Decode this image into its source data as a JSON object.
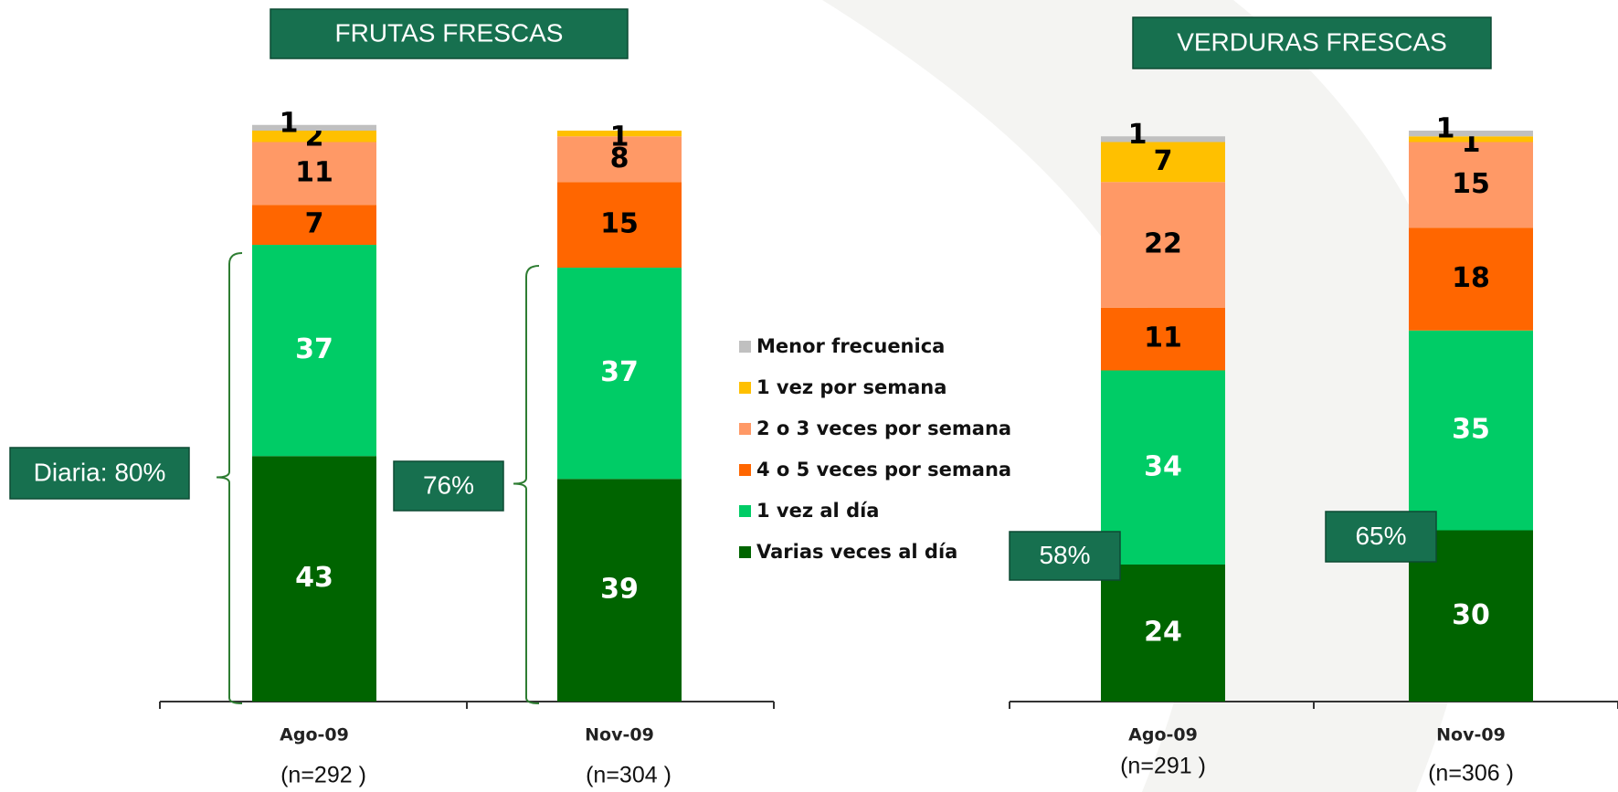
{
  "chart_data": [
    {
      "type": "bar",
      "stacked": true,
      "title": "FRUTAS FRESCAS",
      "categories": [
        "Ago-09",
        "Nov-09"
      ],
      "sample_sizes": [
        "(n=292 )",
        "(n=304 )"
      ],
      "annotations": [
        "Diaria: 80%",
        "76%"
      ],
      "series": [
        {
          "name": "Varias veces al día",
          "color": "#006400",
          "values": [
            43,
            39
          ]
        },
        {
          "name": "1 vez al día",
          "color": "#00cc66",
          "values": [
            37,
            37
          ]
        },
        {
          "name": "4 o 5 veces por semana",
          "color": "#ff6600",
          "values": [
            7,
            15
          ]
        },
        {
          "name": "2 o 3 veces por semana",
          "color": "#ff9966",
          "values": [
            11,
            8
          ]
        },
        {
          "name": "1 vez por semana",
          "color": "#ffc000",
          "values": [
            2,
            1
          ]
        },
        {
          "name": "Menor frecuenica",
          "color": "#c0c0c0",
          "values": [
            1,
            null
          ]
        }
      ]
    },
    {
      "type": "bar",
      "stacked": true,
      "title": "VERDURAS FRESCAS",
      "categories": [
        "Ago-09",
        "Nov-09"
      ],
      "sample_sizes": [
        "(n=291 )",
        "(n=306 )"
      ],
      "annotations": [
        "58%",
        "65%"
      ],
      "series": [
        {
          "color": "#006400",
          "values": [
            24,
            30
          ]
        },
        {
          "color": "#00cc66",
          "values": [
            34,
            35
          ]
        },
        {
          "color": "#ff6600",
          "values": [
            11,
            18
          ]
        },
        {
          "color": "#ff9966",
          "values": [
            22,
            15
          ]
        },
        {
          "color": "#ffc000",
          "values": [
            7,
            1
          ]
        },
        {
          "color": "#c0c0c0",
          "values": [
            1,
            1
          ]
        }
      ]
    }
  ]
}
